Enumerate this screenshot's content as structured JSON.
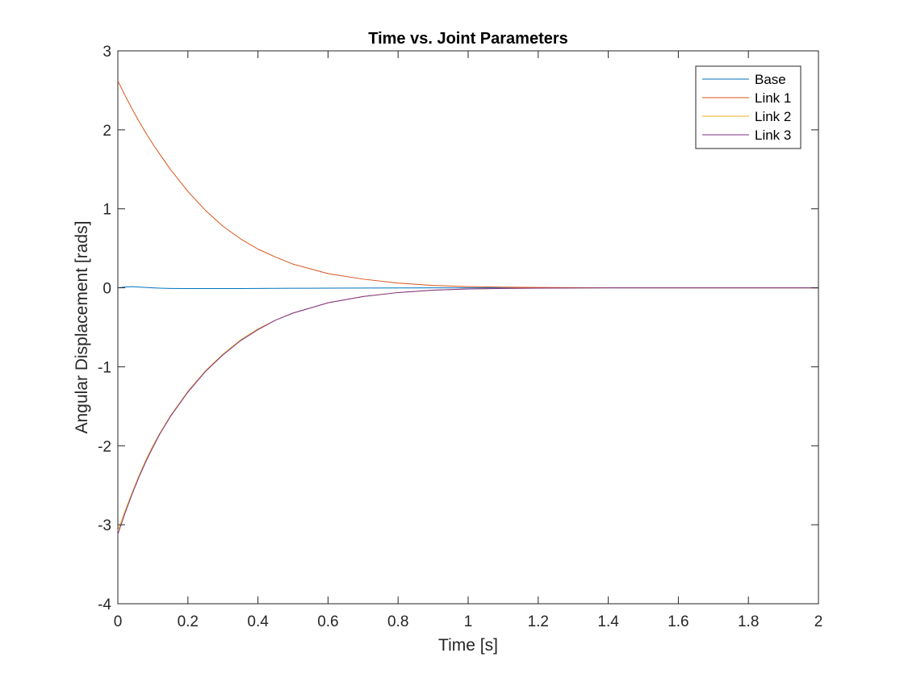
{
  "chart_data": {
    "type": "line",
    "title": "Time vs. Joint Parameters",
    "xlabel": "Time [s]",
    "ylabel": "Angular Displacement [rads]",
    "xlim": [
      0,
      2
    ],
    "ylim": [
      -4,
      3
    ],
    "xticks": [
      0,
      0.2,
      0.4,
      0.6,
      0.8,
      1,
      1.2,
      1.4,
      1.6,
      1.8,
      2
    ],
    "xtick_labels": [
      "0",
      "0.2",
      "0.4",
      "0.6",
      "0.8",
      "1",
      "1.2",
      "1.4",
      "1.6",
      "1.8",
      "2"
    ],
    "yticks": [
      -4,
      -3,
      -2,
      -1,
      0,
      1,
      2,
      3
    ],
    "ytick_labels": [
      "-4",
      "-3",
      "-2",
      "-1",
      "0",
      "1",
      "2",
      "3"
    ],
    "grid": false,
    "legend_position": "top-right",
    "x": [
      0,
      0.02,
      0.04,
      0.06,
      0.08,
      0.1,
      0.12,
      0.15,
      0.2,
      0.25,
      0.3,
      0.35,
      0.4,
      0.45,
      0.5,
      0.6,
      0.7,
      0.8,
      0.9,
      1.0,
      1.1,
      1.2,
      1.4,
      1.6,
      1.8,
      2.0
    ],
    "series": [
      {
        "name": "Base",
        "color": "#0072BD",
        "values": [
          0,
          0.01,
          0.015,
          0.01,
          0.005,
          0.0,
          -0.005,
          -0.008,
          -0.01,
          -0.01,
          -0.01,
          -0.009,
          -0.008,
          -0.007,
          -0.006,
          -0.004,
          -0.003,
          -0.002,
          -0.001,
          0,
          0,
          0,
          0,
          0,
          0,
          0
        ]
      },
      {
        "name": "Link 1",
        "color": "#D95319",
        "values": [
          2.62,
          2.44,
          2.27,
          2.11,
          1.96,
          1.82,
          1.69,
          1.5,
          1.22,
          0.98,
          0.78,
          0.62,
          0.49,
          0.39,
          0.3,
          0.18,
          0.11,
          0.06,
          0.03,
          0.015,
          0.008,
          0.004,
          0.001,
          0,
          0,
          0
        ]
      },
      {
        "name": "Link 2",
        "color": "#EDB120",
        "values": [
          -3.08,
          -2.83,
          -2.6,
          -2.38,
          -2.18,
          -2.0,
          -1.84,
          -1.62,
          -1.31,
          -1.05,
          -0.84,
          -0.66,
          -0.52,
          -0.41,
          -0.32,
          -0.19,
          -0.11,
          -0.06,
          -0.03,
          -0.015,
          -0.008,
          -0.004,
          -0.001,
          0,
          0,
          0
        ]
      },
      {
        "name": "Link 3",
        "color": "#7E2F8E",
        "values": [
          -3.12,
          -2.86,
          -2.62,
          -2.4,
          -2.2,
          -2.02,
          -1.85,
          -1.63,
          -1.32,
          -1.06,
          -0.85,
          -0.67,
          -0.53,
          -0.41,
          -0.32,
          -0.19,
          -0.11,
          -0.06,
          -0.03,
          -0.015,
          -0.008,
          -0.004,
          -0.001,
          0,
          0,
          0
        ]
      }
    ]
  }
}
